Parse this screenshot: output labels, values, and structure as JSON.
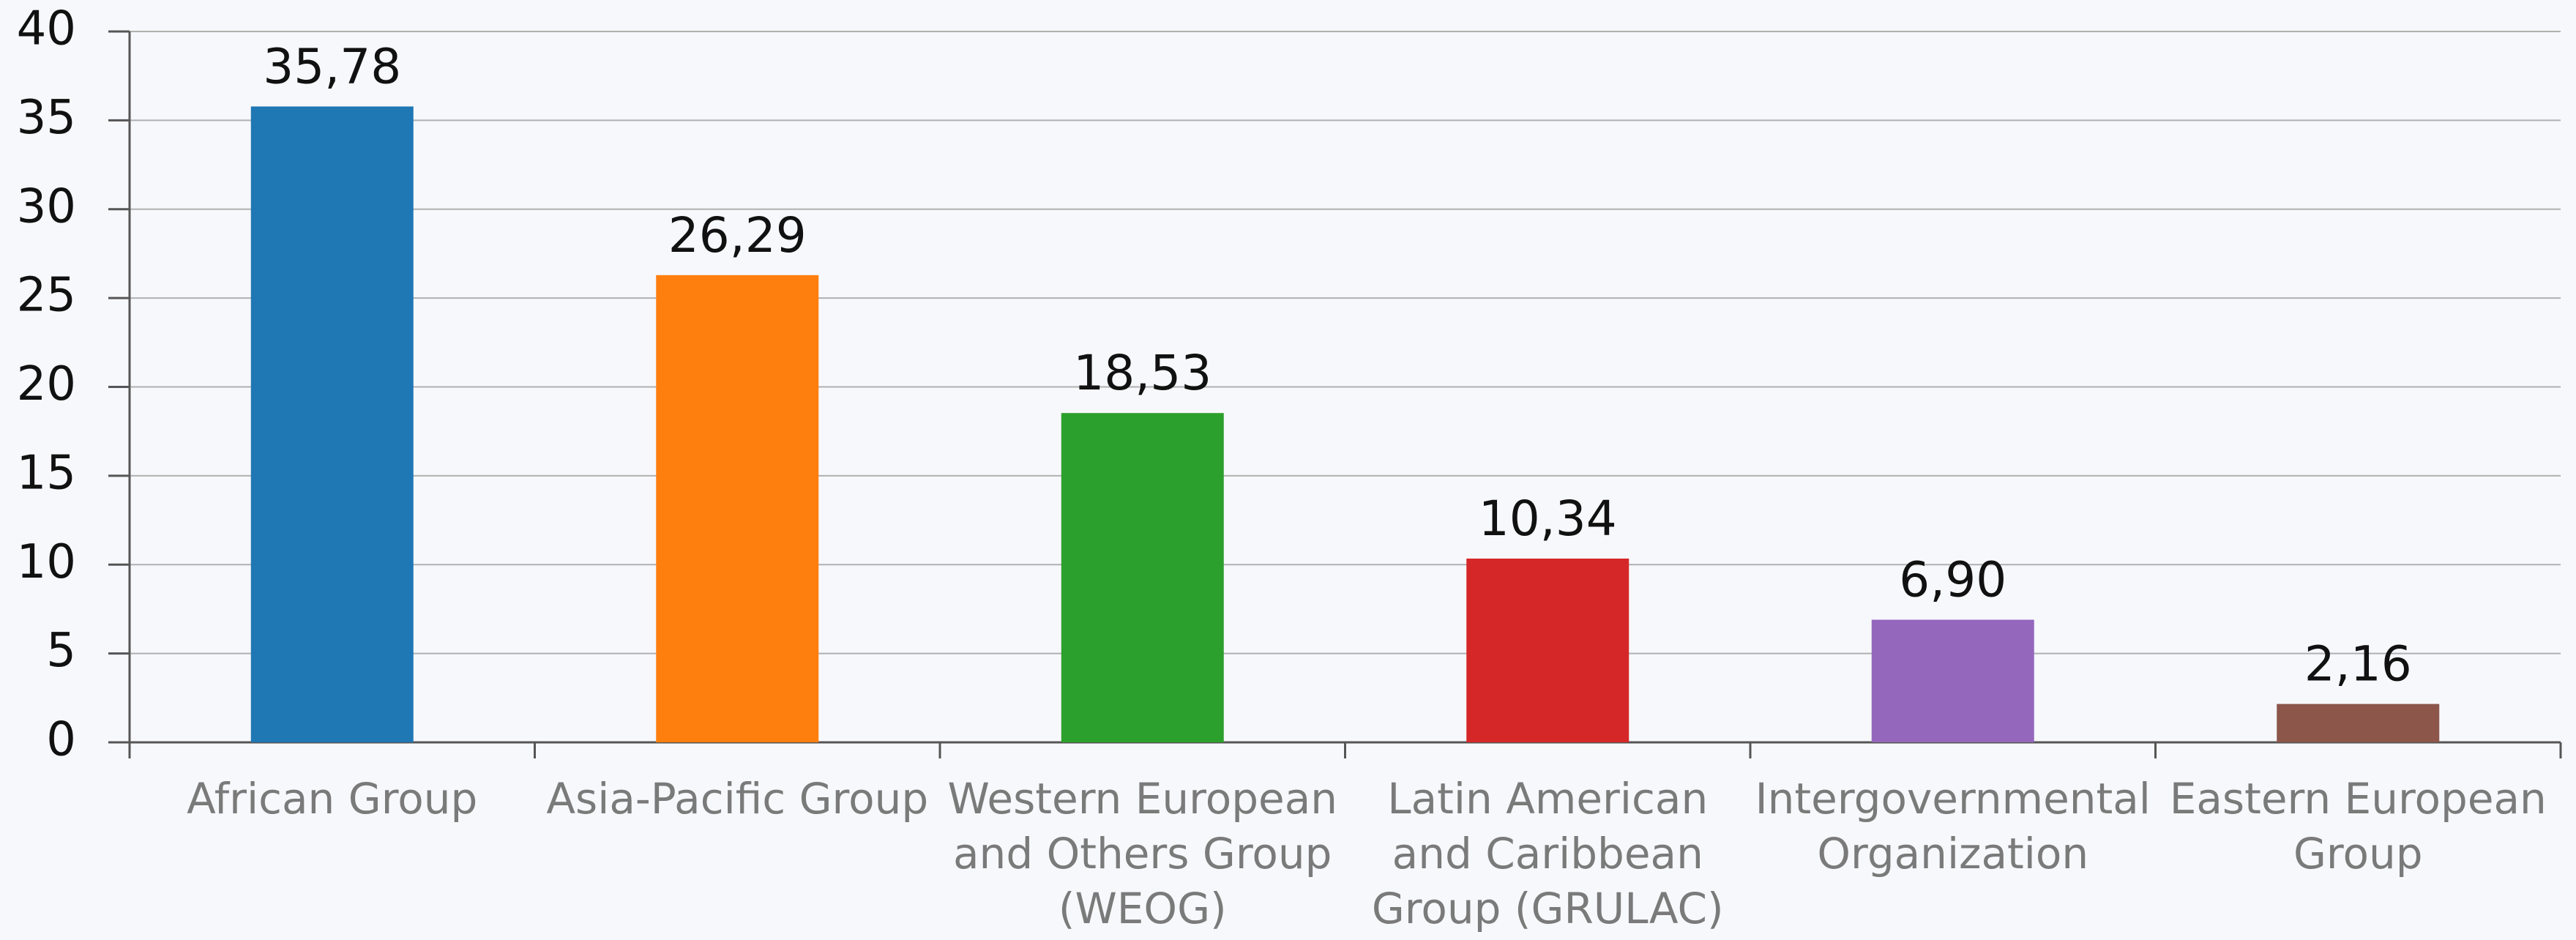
{
  "chart_data": {
    "type": "bar",
    "categories": [
      "African Group",
      "Asia-Pacific Group",
      "Western European\nand Others Group\n(WEOG)",
      "Latin American\nand Caribbean\nGroup (GRULAC)",
      "Intergovernmental\nOrganization",
      "Eastern European\nGroup"
    ],
    "values": [
      35.78,
      26.29,
      18.53,
      10.34,
      6.9,
      2.16
    ],
    "value_labels": [
      "35,78",
      "26,29",
      "18,53",
      "10,34",
      "6,90",
      "2,16"
    ],
    "colors": [
      "#1f77b4",
      "#ff7f0e",
      "#2ca02c",
      "#d62728",
      "#9467bd",
      "#8c564b"
    ],
    "ylim": [
      0,
      40
    ],
    "yticks": [
      0,
      5,
      10,
      15,
      20,
      25,
      30,
      35,
      40
    ],
    "grid": true
  }
}
